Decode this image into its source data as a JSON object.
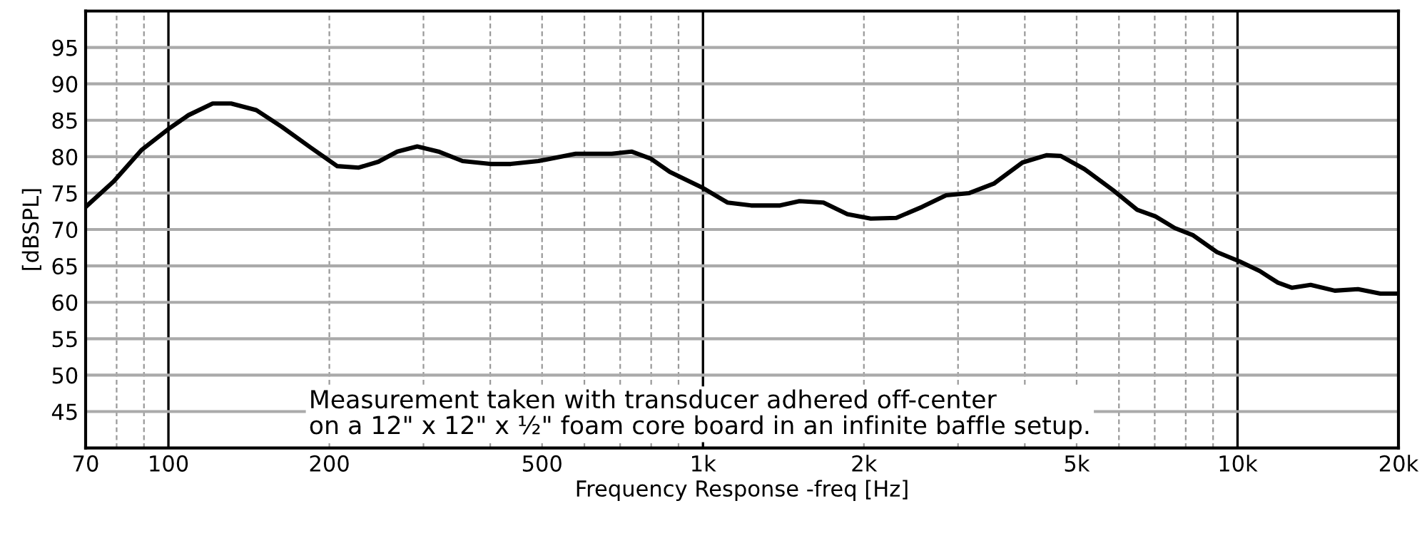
{
  "chart_data": {
    "type": "line",
    "xlabel": "Frequency Response -freq [Hz]",
    "ylabel": "[dBSPL]",
    "log": "x",
    "grid": true,
    "marker": "none",
    "line_style": "solid",
    "xlim": [
      70,
      20000
    ],
    "ylim": [
      40,
      100
    ],
    "xticks": [
      70,
      {
        "value": 80,
        "label": null
      },
      {
        "value": 90,
        "label": null
      },
      100,
      200,
      {
        "value": 300,
        "label": null
      },
      {
        "value": 400,
        "label": null
      },
      500,
      {
        "value": 600,
        "label": null
      },
      {
        "value": 700,
        "label": null
      },
      {
        "value": 800,
        "label": null
      },
      {
        "value": 900,
        "label": null
      },
      {
        "value": 1000,
        "label": "1k"
      },
      {
        "value": 2000,
        "label": "2k"
      },
      {
        "value": 3000,
        "label": null
      },
      {
        "value": 4000,
        "label": null
      },
      {
        "value": 5000,
        "label": "5k"
      },
      {
        "value": 6000,
        "label": null
      },
      {
        "value": 7000,
        "label": null
      },
      {
        "value": 8000,
        "label": null
      },
      {
        "value": 9000,
        "label": null
      },
      {
        "value": 10000,
        "label": "10k"
      },
      {
        "value": 20000,
        "label": "20k"
      }
    ],
    "yticks": [
      45,
      50,
      55,
      60,
      65,
      70,
      75,
      80,
      85,
      90,
      95
    ],
    "annotations": [
      "Measurement taken with transducer adhered off-center\non a 12\" x 12\" x ½\" foam core board in an infinite baffle setup."
    ],
    "series": [
      {
        "color": "#000000",
        "x": [
          70,
          79,
          89,
          100,
          109,
          121,
          131,
          146,
          163,
          185,
          207,
          227,
          247,
          268,
          292,
          320,
          355,
          400,
          437,
          492,
          578,
          675,
          735,
          800,
          867,
          1000,
          1111,
          1230,
          1394,
          1515,
          1680,
          1862,
          2060,
          2300,
          2570,
          2850,
          3150,
          3500,
          3960,
          4390,
          4670,
          5170,
          5850,
          6490,
          7020,
          7630,
          8260,
          9150,
          10100,
          11000,
          11900,
          12650,
          13700,
          15200,
          16800,
          18500,
          20000
        ],
        "values": [
          73.1,
          76.6,
          80.9,
          83.8,
          85.7,
          87.3,
          87.3,
          86.4,
          84.1,
          81.2,
          78.7,
          78.5,
          79.3,
          80.7,
          81.4,
          80.7,
          79.4,
          79.0,
          79.0,
          79.4,
          80.4,
          80.4,
          80.7,
          79.7,
          77.9,
          75.7,
          73.7,
          73.3,
          73.3,
          73.9,
          73.7,
          72.1,
          71.5,
          71.6,
          73.1,
          74.7,
          75.0,
          76.3,
          79.2,
          80.2,
          80.1,
          78.3,
          75.4,
          72.7,
          71.8,
          70.2,
          69.2,
          66.9,
          65.6,
          64.3,
          62.7,
          62.0,
          62.4,
          61.6,
          61.8,
          61.2,
          61.2
        ]
      }
    ]
  }
}
